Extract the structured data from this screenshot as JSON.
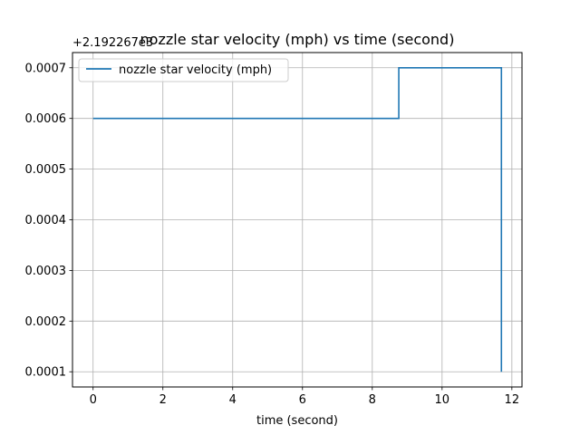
{
  "chart_data": {
    "type": "line",
    "title": "nozzle star velocity (mph) vs time (second)",
    "xlabel": "time (second)",
    "ylabel": "",
    "offset_text": "+2.192267e3",
    "xlim": [
      -0.59,
      12.29
    ],
    "ylim": [
      7e-05,
      0.00073
    ],
    "xticks": [
      0,
      2,
      4,
      6,
      8,
      10,
      12
    ],
    "yticks": [
      0.0001,
      0.0002,
      0.0003,
      0.0004,
      0.0005,
      0.0006,
      0.0007
    ],
    "ytick_labels": [
      "0.0001",
      "0.0002",
      "0.0003",
      "0.0004",
      "0.0005",
      "0.0006",
      "0.0007"
    ],
    "grid": true,
    "legend_position": "upper-left",
    "step": "post",
    "series": [
      {
        "name": "nozzle star velocity (mph)",
        "color": "#1f77b4",
        "x": [
          0,
          8.76,
          11.7,
          11.7
        ],
        "y": [
          0.0006,
          0.0007,
          0.0007,
          0.0001
        ]
      }
    ]
  }
}
